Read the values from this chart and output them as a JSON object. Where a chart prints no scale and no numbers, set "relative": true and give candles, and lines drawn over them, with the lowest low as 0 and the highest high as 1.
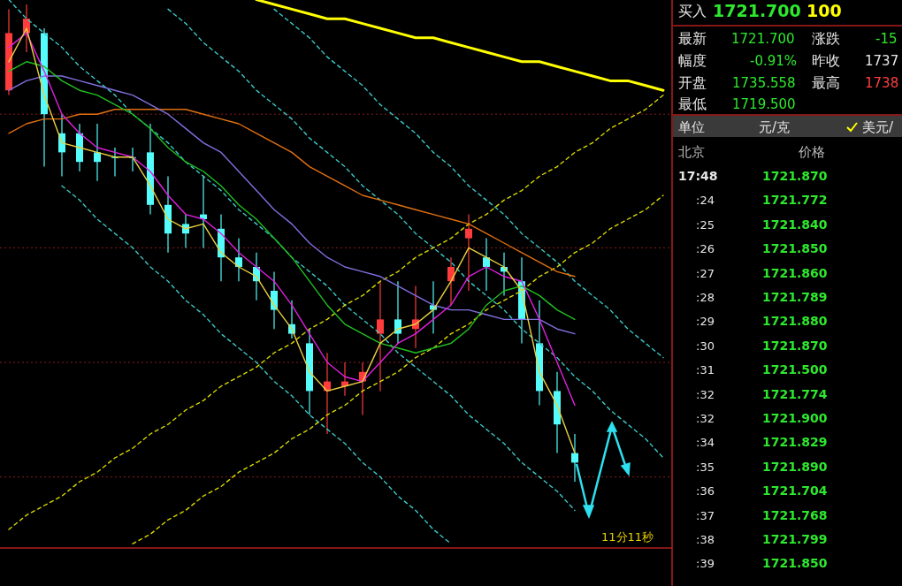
{
  "chart_data": [
    {
      "type": "candlestick",
      "relative": true,
      "categories": [
        null,
        null,
        null,
        null,
        null,
        null,
        null,
        null,
        null,
        null,
        null,
        null,
        null,
        null,
        null,
        null,
        null,
        null,
        null,
        null,
        null,
        null,
        null,
        null,
        null,
        null,
        null,
        null,
        null,
        null,
        null,
        null,
        null,
        null,
        null,
        null,
        null,
        null
      ],
      "ref_lines": [
        {
          "axis": "y",
          "value": 0.77,
          "color": "#8b1a1a",
          "line_style": "dotted"
        },
        {
          "axis": "y",
          "value": 0.49,
          "color": "#8b1a1a",
          "line_style": "dotted"
        },
        {
          "axis": "y",
          "value": 0.25,
          "color": "#8b1a1a",
          "line_style": "dotted"
        },
        {
          "axis": "y",
          "value": 0.01,
          "color": "#8b1a1a",
          "line_style": "dotted"
        }
      ],
      "annotations": [
        "11分11秒"
      ],
      "series": [
        {
          "type": "line",
          "color": "#3cc8c8",
          "line_style": "dashed",
          "values": [
            1.01,
            0.97,
            0.94,
            0.91,
            0.87,
            0.84,
            0.81,
            0.77,
            0.74,
            0.71,
            0.67,
            0.64,
            0.61,
            0.57,
            0.54,
            0.51,
            0.47,
            0.44,
            0.41,
            0.37,
            0.34,
            0.31,
            0.27,
            0.24,
            0.21,
            0.18,
            0.14,
            0.11,
            0.08,
            0.04,
            0.01,
            -0.02,
            -0.06,
            null,
            null,
            null,
            null,
            null
          ]
        },
        {
          "type": "line",
          "color": "#3cc8c8",
          "line_style": "dashed",
          "values": [
            null,
            null,
            null,
            null,
            null,
            null,
            null,
            null,
            null,
            0.99,
            0.96,
            0.92,
            0.89,
            0.86,
            0.82,
            0.79,
            0.76,
            0.72,
            0.69,
            0.66,
            0.62,
            0.59,
            0.56,
            0.52,
            0.49,
            0.46,
            0.42,
            0.39,
            0.36,
            0.32,
            0.29,
            0.26,
            0.22,
            0.19,
            0.15,
            0.12,
            0.09,
            0.05
          ]
        },
        {
          "type": "line",
          "color": "#3cc8c8",
          "line_style": "dashed",
          "values": [
            null,
            null,
            null,
            0.62,
            0.59,
            0.55,
            0.52,
            0.49,
            0.45,
            0.42,
            0.38,
            0.35,
            0.31,
            0.28,
            0.25,
            0.21,
            0.18,
            0.14,
            0.11,
            0.08,
            0.04,
            0.01,
            -0.03,
            -0.06,
            -0.1,
            -0.13,
            null,
            null,
            null,
            null,
            null,
            null,
            null,
            null,
            null,
            null,
            null,
            null
          ]
        },
        {
          "type": "line",
          "color": "#3cc8c8",
          "line_style": "dashed",
          "values": [
            null,
            null,
            null,
            null,
            null,
            null,
            null,
            null,
            null,
            null,
            null,
            null,
            null,
            null,
            null,
            0.99,
            0.96,
            0.93,
            0.89,
            0.86,
            0.83,
            0.79,
            0.76,
            0.73,
            0.69,
            0.66,
            0.62,
            0.59,
            0.56,
            0.52,
            0.49,
            0.46,
            0.42,
            0.39,
            0.36,
            0.32,
            0.29,
            0.26
          ]
        },
        {
          "type": "line",
          "color": "#d8d800",
          "line_style": "dashed",
          "values": [
            -0.1,
            -0.07,
            -0.05,
            -0.03,
            0.0,
            0.02,
            0.05,
            0.07,
            0.1,
            0.12,
            0.15,
            0.17,
            0.2,
            0.22,
            0.24,
            0.27,
            0.29,
            0.32,
            0.34,
            0.37,
            0.39,
            0.42,
            0.44,
            0.47,
            0.49,
            0.51,
            0.54,
            0.56,
            0.59,
            0.61,
            0.64,
            0.66,
            0.69,
            0.71,
            0.74,
            0.76,
            0.78,
            0.81
          ]
        },
        {
          "type": "line",
          "color": "#d8d800",
          "line_style": "dashed",
          "values": [
            null,
            null,
            null,
            null,
            null,
            null,
            null,
            -0.13,
            -0.11,
            -0.08,
            -0.06,
            -0.03,
            -0.01,
            0.02,
            0.04,
            0.06,
            0.09,
            0.11,
            0.14,
            0.16,
            0.19,
            0.21,
            0.23,
            0.26,
            0.28,
            0.31,
            0.33,
            0.36,
            0.38,
            0.4,
            0.43,
            0.45,
            0.48,
            0.5,
            0.53,
            0.55,
            0.57,
            0.6
          ]
        },
        {
          "type": "line",
          "color": "#ffff00",
          "line_style": "solid",
          "values": [
            null,
            null,
            null,
            null,
            null,
            null,
            null,
            null,
            null,
            null,
            null,
            null,
            null,
            null,
            1.01,
            1.0,
            0.99,
            0.98,
            0.97,
            0.97,
            0.96,
            0.95,
            0.94,
            0.93,
            0.93,
            0.92,
            0.91,
            0.9,
            0.89,
            0.88,
            0.88,
            0.87,
            0.86,
            0.85,
            0.84,
            0.84,
            0.83,
            0.82
          ]
        },
        {
          "type": "line",
          "color": "#e07010",
          "line_style": "solid",
          "values": [
            0.73,
            0.75,
            0.76,
            0.76,
            0.77,
            0.77,
            0.78,
            0.78,
            0.78,
            0.78,
            0.78,
            0.77,
            0.76,
            0.75,
            0.73,
            0.71,
            0.69,
            0.66,
            0.64,
            0.62,
            0.6,
            0.59,
            0.58,
            0.57,
            0.56,
            0.55,
            0.54,
            0.52,
            0.5,
            0.48,
            0.46,
            0.44,
            0.43,
            null,
            null,
            null,
            null,
            null
          ]
        },
        {
          "type": "line",
          "color": "#8070e0",
          "line_style": "solid",
          "values": [
            0.82,
            0.84,
            0.85,
            0.85,
            0.84,
            0.83,
            0.82,
            0.81,
            0.79,
            0.77,
            0.74,
            0.71,
            0.69,
            0.65,
            0.61,
            0.57,
            0.54,
            0.5,
            0.47,
            0.45,
            0.44,
            0.43,
            0.41,
            0.39,
            0.37,
            0.36,
            0.36,
            0.35,
            0.34,
            0.34,
            0.34,
            0.32,
            0.31,
            null,
            null,
            null,
            null,
            null
          ]
        },
        {
          "type": "line",
          "color": "#20c020",
          "line_style": "solid",
          "values": [
            0.86,
            0.88,
            0.87,
            0.84,
            0.82,
            0.81,
            0.79,
            0.77,
            0.74,
            0.7,
            0.67,
            0.65,
            0.62,
            0.58,
            0.55,
            0.51,
            0.47,
            0.42,
            0.37,
            0.33,
            0.31,
            0.29,
            0.28,
            0.27,
            0.28,
            0.29,
            0.32,
            0.37,
            0.4,
            0.41,
            0.39,
            0.36,
            0.34,
            null,
            null,
            null,
            null,
            null
          ]
        },
        {
          "type": "line",
          "color": "#e020e0",
          "line_style": "solid",
          "values": [
            0.91,
            0.94,
            0.86,
            0.77,
            0.73,
            0.7,
            0.69,
            0.68,
            0.65,
            0.6,
            0.56,
            0.55,
            0.52,
            0.48,
            0.45,
            0.42,
            0.37,
            0.31,
            0.25,
            0.22,
            0.21,
            0.25,
            0.29,
            0.31,
            0.34,
            0.37,
            0.43,
            0.45,
            0.43,
            0.42,
            0.34,
            0.25,
            0.16,
            null,
            null,
            null,
            null,
            null
          ]
        },
        {
          "type": "line",
          "color": "#e8d040",
          "line_style": "solid",
          "values": [
            0.88,
            0.95,
            0.81,
            0.71,
            0.7,
            0.69,
            0.68,
            0.68,
            0.62,
            0.55,
            0.53,
            0.54,
            0.48,
            0.45,
            0.43,
            0.37,
            0.32,
            0.23,
            0.19,
            0.2,
            0.21,
            0.29,
            0.32,
            0.33,
            0.36,
            0.42,
            0.49,
            0.47,
            0.45,
            0.4,
            0.23,
            0.16,
            0.06,
            null,
            null,
            null,
            null,
            null
          ]
        },
        {
          "type": "candlestick",
          "ohlc": [
            [
              0.82,
              0.99,
              0.81,
              0.94
            ],
            [
              0.94,
              1.0,
              0.9,
              0.97
            ],
            [
              0.94,
              0.95,
              0.66,
              0.77
            ],
            [
              0.73,
              0.77,
              0.64,
              0.69
            ],
            [
              0.73,
              0.75,
              0.65,
              0.67
            ],
            [
              0.69,
              0.75,
              0.63,
              0.67
            ],
            [
              0.68,
              0.7,
              0.64,
              0.68
            ],
            [
              0.68,
              0.7,
              0.65,
              0.68
            ],
            [
              0.69,
              0.75,
              0.56,
              0.58
            ],
            [
              0.58,
              0.64,
              0.48,
              0.52
            ],
            [
              0.54,
              0.56,
              0.49,
              0.52
            ],
            [
              0.56,
              0.64,
              0.49,
              0.55
            ],
            [
              0.53,
              0.56,
              0.42,
              0.47
            ],
            [
              0.47,
              0.51,
              0.42,
              0.45
            ],
            [
              0.45,
              0.48,
              0.38,
              0.42
            ],
            [
              0.4,
              0.44,
              0.32,
              0.36
            ],
            [
              0.33,
              0.38,
              0.3,
              0.31
            ],
            [
              0.29,
              0.32,
              0.14,
              0.19
            ],
            [
              0.19,
              0.27,
              0.1,
              0.21
            ],
            [
              0.2,
              0.25,
              0.18,
              0.21
            ],
            [
              0.21,
              0.25,
              0.14,
              0.23
            ],
            [
              0.31,
              0.42,
              0.19,
              0.34
            ],
            [
              0.34,
              0.42,
              0.29,
              0.31
            ],
            [
              0.32,
              0.41,
              0.28,
              0.34
            ],
            [
              0.37,
              0.42,
              0.31,
              0.36
            ],
            [
              0.42,
              0.47,
              0.37,
              0.45
            ],
            [
              0.51,
              0.56,
              0.4,
              0.53
            ],
            [
              0.47,
              0.51,
              0.4,
              0.45
            ],
            [
              0.45,
              0.48,
              0.39,
              0.44
            ],
            [
              0.42,
              0.47,
              0.29,
              0.34
            ],
            [
              0.29,
              0.38,
              0.16,
              0.19
            ],
            [
              0.19,
              0.23,
              0.06,
              0.12
            ],
            [
              0.06,
              0.1,
              0.0,
              0.04
            ],
            null,
            null,
            null,
            null,
            null
          ],
          "colors": [
            "#ff3b3b",
            "#ff3b3b",
            "#54fcfc",
            "#54fcfc",
            "#54fcfc",
            "#54fcfc",
            "#54fcfc",
            "#54fcfc",
            "#54fcfc",
            "#54fcfc",
            "#54fcfc",
            "#54fcfc",
            "#54fcfc",
            "#54fcfc",
            "#54fcfc",
            "#54fcfc",
            "#54fcfc",
            "#54fcfc",
            "#ff3b3b",
            "#ff3b3b",
            "#ff3b3b",
            "#ff3b3b",
            "#54fcfc",
            "#ff3b3b",
            "#54fcfc",
            "#ff3b3b",
            "#ff3b3b",
            "#54fcfc",
            "#54fcfc",
            "#54fcfc",
            "#54fcfc",
            "#54fcfc",
            "#54fcfc",
            null,
            null,
            null,
            null,
            null
          ]
        }
      ]
    },
    {
      "type": "other",
      "annotations": [
        "买入",
        "1721.700",
        "100",
        "最新",
        "1721.700",
        "涨跌",
        "-15",
        "幅度",
        "-0.91%",
        "昨收",
        "1737",
        "开盘",
        "1735.558",
        "最高",
        "1738",
        "最低",
        "1719.500",
        "单位",
        "元/克",
        "美元/",
        "北京",
        "价格",
        "17:48",
        "1721.870",
        ":24",
        "1721.772",
        ":25",
        "1721.840",
        ":26",
        "1721.850",
        ":27",
        "1721.860",
        ":28",
        "1721.789",
        ":29",
        "1721.880",
        ":30",
        "1721.870",
        ":31",
        "1721.500",
        ":32",
        "1721.774",
        ":32",
        "1721.900",
        ":34",
        "1721.829",
        ":35",
        "1721.890",
        ":36",
        "1721.704",
        ":37",
        "1721.768",
        ":38",
        "1721.799",
        ":39",
        "1721.850"
      ]
    }
  ]
}
